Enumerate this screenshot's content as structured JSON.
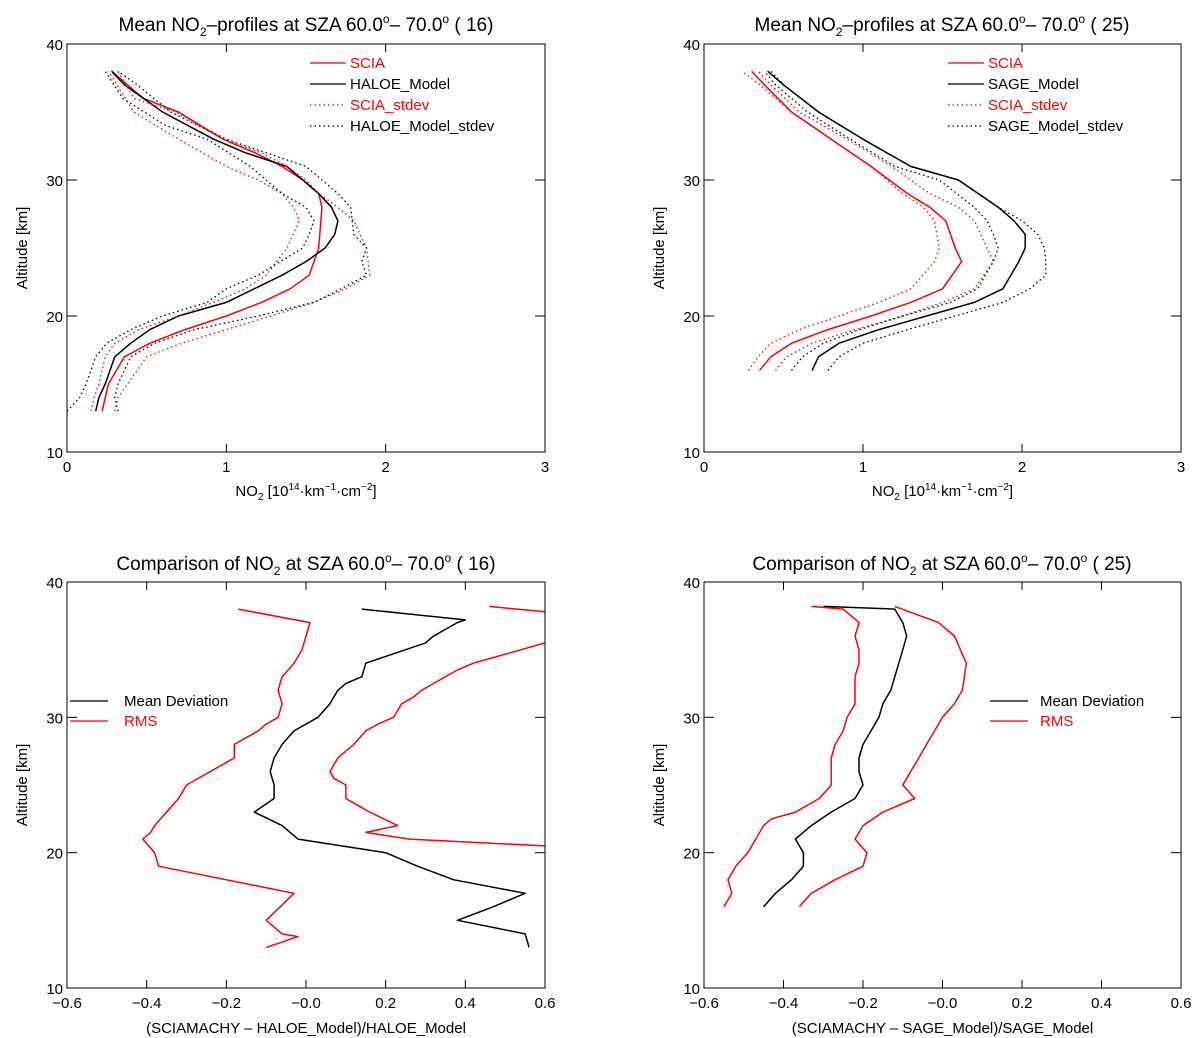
{
  "chart_data": [
    {
      "type": "line",
      "title": {
        "pre": "Mean NO",
        "sub": "2",
        "mid": "–profiles at SZA  60.0",
        "deg1": "o",
        "dash": "– 70.0",
        "deg2": "o",
        "post": " (  16)"
      },
      "xlabel": {
        "pre": "NO",
        "sub": "2",
        "mid": " [10",
        "sup1": "14",
        "mid2": "·km",
        "sup2": "−1",
        "mid3": "·cm",
        "sup3": "−2",
        "post": "]"
      },
      "ylabel": "Altitude [km]",
      "xlim": [
        0,
        3
      ],
      "ylim": [
        10,
        40
      ],
      "xticks": [
        "0",
        "1",
        "2",
        "3"
      ],
      "yticks": [
        "10",
        "20",
        "30",
        "40"
      ],
      "grid": false,
      "legend": "top-right",
      "series": [
        {
          "name": "SCIA",
          "color": "#ff0000",
          "dash": "solid",
          "x": [
            0.22,
            0.24,
            0.26,
            0.36,
            0.52,
            0.74,
            1.0,
            1.22,
            1.4,
            1.52,
            1.58,
            1.6,
            1.58,
            1.48,
            1.35,
            1.18,
            0.98,
            0.7,
            0.48,
            0.28
          ],
          "y": [
            13,
            14,
            15,
            17,
            18,
            19,
            20,
            21,
            22,
            23,
            25,
            28,
            29,
            30,
            31,
            32,
            33,
            35,
            36,
            38
          ]
        },
        {
          "name": "HALOE_Model",
          "color": "#000000",
          "dash": "solid",
          "x": [
            0.18,
            0.2,
            0.24,
            0.3,
            0.4,
            0.52,
            0.7,
            1.0,
            1.35,
            1.5,
            1.62,
            1.68,
            1.7,
            1.66,
            1.58,
            1.38,
            1.12,
            0.92,
            0.6,
            0.36,
            0.28
          ],
          "y": [
            13,
            14,
            15,
            17,
            18,
            19,
            20,
            21,
            23,
            24,
            25,
            26,
            27,
            28,
            29,
            31,
            32,
            33,
            35,
            37,
            38
          ]
        },
        {
          "name": "SCIA_stdev",
          "color": "#ff0000",
          "dash": "dotted",
          "x": [
            0.3,
            0.32,
            0.38,
            0.5,
            0.72,
            1.0,
            1.28,
            1.55,
            1.75,
            1.9,
            1.88,
            1.8,
            1.7,
            1.58,
            1.5,
            1.38,
            1.22,
            0.98,
            0.68,
            0.42,
            0.32
          ],
          "y": [
            13,
            14,
            15,
            17,
            18,
            19,
            20,
            21,
            22,
            23,
            25,
            27,
            28,
            29,
            30,
            31,
            32,
            33,
            35,
            36,
            38
          ]
        },
        {
          "name": "SCIA_stdev",
          "color": "#ff0000",
          "dash": "dotted",
          "x": [
            0.15,
            0.17,
            0.2,
            0.24,
            0.3,
            0.45,
            0.7,
            0.92,
            1.12,
            1.25,
            1.38,
            1.46,
            1.42,
            1.35,
            1.2,
            1.0,
            0.7,
            0.42,
            0.26
          ],
          "y": [
            13,
            14,
            15,
            17,
            18,
            19,
            20,
            21,
            22,
            23,
            25,
            27,
            28,
            29,
            30,
            31,
            33,
            35,
            38
          ]
        },
        {
          "name": "HALOE_Model_stdev",
          "color": "#000000",
          "dash": "dotted",
          "x": [
            0.32,
            0.3,
            0.32,
            0.4,
            0.55,
            0.8,
            1.2,
            1.55,
            1.72,
            1.88,
            1.85,
            1.88,
            1.8,
            1.78,
            1.7,
            1.5,
            1.25,
            1.0,
            0.65,
            0.44,
            0.32
          ],
          "y": [
            13,
            14,
            15,
            17,
            18,
            19,
            20,
            21,
            22,
            23,
            24,
            25,
            26,
            28,
            29,
            31,
            32,
            33,
            35,
            37,
            38
          ]
        },
        {
          "name": "HALOE_Model_stdev",
          "color": "#000000",
          "dash": "dotted",
          "x": [
            0.0,
            0.08,
            0.12,
            0.18,
            0.25,
            0.4,
            0.6,
            0.88,
            1.0,
            1.2,
            1.48,
            1.52,
            1.55,
            1.5,
            1.35,
            1.15,
            0.88,
            0.62,
            0.35,
            0.24
          ],
          "y": [
            13,
            14,
            15,
            17,
            18,
            19,
            20,
            21,
            22,
            23,
            25,
            26,
            27,
            28,
            29,
            31,
            33,
            34,
            36,
            38
          ]
        }
      ]
    },
    {
      "type": "line",
      "title": {
        "pre": "Mean NO",
        "sub": "2",
        "mid": "–profiles at SZA  60.0",
        "deg1": "o",
        "dash": "– 70.0",
        "deg2": "o",
        "post": " (  25)"
      },
      "xlabel": {
        "pre": "NO",
        "sub": "2",
        "mid": " [10",
        "sup1": "14",
        "mid2": "·km",
        "sup2": "−1",
        "mid3": "·cm",
        "sup3": "−2",
        "post": "]"
      },
      "ylabel": "Altitude [km]",
      "xlim": [
        0,
        3
      ],
      "ylim": [
        10,
        40
      ],
      "xticks": [
        "0",
        "1",
        "2",
        "3"
      ],
      "yticks": [
        "10",
        "20",
        "30",
        "40"
      ],
      "grid": false,
      "legend": "top-right",
      "series": [
        {
          "name": "SCIA",
          "color": "#ff0000",
          "dash": "solid",
          "x": [
            0.35,
            0.42,
            0.55,
            0.78,
            1.05,
            1.3,
            1.5,
            1.62,
            1.58,
            1.52,
            1.42,
            1.28,
            1.05,
            0.8,
            0.55,
            0.38,
            0.3
          ],
          "y": [
            16,
            17,
            18,
            19,
            20,
            21,
            22,
            24,
            25,
            27,
            28,
            29,
            31,
            33,
            35,
            37,
            38
          ]
        },
        {
          "name": "SAGE_Model",
          "color": "#000000",
          "dash": "solid",
          "x": [
            0.68,
            0.72,
            0.85,
            1.1,
            1.4,
            1.7,
            1.88,
            1.98,
            2.02,
            2.02,
            1.95,
            1.85,
            1.6,
            1.3,
            1.0,
            0.72,
            0.5,
            0.4
          ],
          "y": [
            16,
            17,
            18,
            19,
            20,
            21,
            22,
            24,
            25,
            26,
            27,
            28,
            30,
            31,
            33,
            35,
            37,
            38
          ]
        },
        {
          "name": "SCIA_stdev",
          "color": "#ff0000",
          "dash": "dotted",
          "x": [
            0.45,
            0.52,
            0.68,
            0.95,
            1.25,
            1.5,
            1.7,
            1.82,
            1.78,
            1.7,
            1.6,
            1.42,
            1.18,
            0.9,
            0.6,
            0.42,
            0.34
          ],
          "y": [
            16,
            17,
            18,
            19,
            20,
            21,
            22,
            24,
            25,
            27,
            28,
            29,
            31,
            33,
            35,
            37,
            38
          ]
        },
        {
          "name": "SCIA_stdev",
          "color": "#ff0000",
          "dash": "dotted",
          "x": [
            0.28,
            0.34,
            0.42,
            0.6,
            0.85,
            1.1,
            1.3,
            1.45,
            1.48,
            1.45,
            1.38,
            1.25,
            1.05,
            0.8,
            0.55,
            0.35,
            0.24
          ],
          "y": [
            16,
            17,
            18,
            19,
            20,
            21,
            22,
            24,
            25,
            27,
            28,
            29,
            31,
            33,
            35,
            37,
            38
          ]
        },
        {
          "name": "SAGE_Model_stdev",
          "color": "#000000",
          "dash": "dotted",
          "x": [
            0.78,
            0.85,
            1.0,
            1.28,
            1.58,
            1.88,
            2.05,
            2.15,
            2.15,
            2.14,
            2.1,
            2.0,
            1.85,
            1.6,
            1.3,
            1.0,
            0.72,
            0.5,
            0.42
          ],
          "y": [
            16,
            17,
            18,
            19,
            20,
            21,
            22,
            23,
            24,
            25,
            26,
            27,
            28,
            30,
            31,
            33,
            35,
            37,
            38
          ]
        },
        {
          "name": "SAGE_Model_stdev",
          "color": "#000000",
          "dash": "dotted",
          "x": [
            0.55,
            0.62,
            0.75,
            0.98,
            1.25,
            1.55,
            1.72,
            1.82,
            1.85,
            1.82,
            1.78,
            1.7,
            1.48,
            1.2,
            0.92,
            0.65,
            0.45,
            0.38
          ],
          "y": [
            16,
            17,
            18,
            19,
            20,
            21,
            22,
            24,
            25,
            26,
            27,
            28,
            30,
            31,
            33,
            35,
            37,
            38
          ]
        }
      ]
    },
    {
      "type": "line",
      "title": {
        "pre": "Comparison of NO",
        "sub": "2",
        "mid": " at SZA  60.0",
        "deg1": "o",
        "dash": "– 70.0",
        "deg2": "o",
        "post": " ( 16)"
      },
      "xlabel": {
        "pre": "(SCIAMACHY – HALOE_Model)/HALOE_Model"
      },
      "ylabel": "Altitude [km]",
      "xlim": [
        -0.6,
        0.6
      ],
      "ylim": [
        10,
        40
      ],
      "xticks": [
        "−0.6",
        "−0.4",
        "−0.2",
        "−0.0",
        "0.2",
        "0.4",
        "0.6"
      ],
      "yticks": [
        "10",
        "20",
        "30",
        "40"
      ],
      "grid": false,
      "legend": "middle-left",
      "series": [
        {
          "name": "Mean Deviation",
          "color": "#000000",
          "dash": "solid",
          "x": [
            0.56,
            0.55,
            0.38,
            0.47,
            0.55,
            0.37,
            0.28,
            0.2,
            -0.02,
            -0.06,
            -0.13,
            -0.08,
            -0.08,
            -0.09,
            -0.08,
            -0.06,
            -0.03,
            0.0,
            0.03,
            0.06,
            0.08,
            0.1,
            0.14,
            0.15,
            0.2,
            0.25,
            0.3,
            0.32,
            0.35,
            0.38,
            0.4,
            0.14
          ],
          "y": [
            13,
            14,
            15,
            16,
            17,
            18,
            19,
            20,
            21,
            22,
            23,
            24,
            25,
            26,
            27,
            28,
            29,
            29.5,
            30,
            31,
            32,
            32.5,
            33,
            34,
            34.5,
            35,
            35.5,
            36,
            36.5,
            37,
            37.2,
            38
          ]
        },
        {
          "name": "RMS",
          "color": "#ff0000",
          "dash": "solid",
          "x": [
            -0.1,
            -0.02,
            -0.06,
            -0.1,
            -0.03,
            -0.37,
            -0.38,
            -0.41,
            -0.39,
            -0.38,
            -0.32,
            -0.3,
            -0.24,
            -0.21,
            -0.18,
            -0.18,
            -0.12,
            -0.1,
            -0.07,
            -0.06,
            -0.07,
            -0.06,
            -0.03,
            -0.01,
            0.0,
            0.01,
            -0.17
          ],
          "y": [
            13,
            13.8,
            14,
            15,
            17,
            19,
            20,
            21,
            21.5,
            22,
            24,
            25,
            26,
            26.5,
            27,
            28,
            29,
            29.5,
            30,
            31,
            32,
            33,
            34,
            35,
            36,
            37,
            38
          ]
        },
        {
          "name": "RMS",
          "color": "#ff0000",
          "dash": "solid",
          "x": [
            0.6,
            0.26,
            0.15,
            0.23,
            0.16,
            0.13,
            0.1,
            0.1,
            0.07,
            0.06,
            0.08,
            0.1,
            0.12,
            0.15,
            0.18,
            0.22,
            0.24,
            0.27,
            0.29,
            0.32,
            0.35,
            0.38,
            0.42,
            0.48,
            0.54,
            0.6
          ],
          "y": [
            20.5,
            21,
            21.5,
            22,
            23,
            23.5,
            24,
            25,
            25.5,
            26,
            27,
            27.5,
            28,
            29,
            29.5,
            30,
            31,
            31.5,
            32,
            32.5,
            33,
            33.5,
            34,
            34.5,
            35,
            35.5
          ]
        },
        {
          "name": "RMS",
          "color": "#ff0000",
          "dash": "solid",
          "x": [
            0.46,
            0.6
          ],
          "y": [
            38.2,
            37.8
          ]
        }
      ]
    },
    {
      "type": "line",
      "title": {
        "pre": "Comparison of NO",
        "sub": "2",
        "mid": " at SZA  60.0",
        "deg1": "o",
        "dash": "– 70.0",
        "deg2": "o",
        "post": " ( 25)"
      },
      "xlabel": {
        "pre": "(SCIAMACHY – SAGE_Model)/SAGE_Model"
      },
      "ylabel": "Altitude [km]",
      "xlim": [
        -0.6,
        0.6
      ],
      "ylim": [
        10,
        40
      ],
      "xticks": [
        "−0.6",
        "−0.4",
        "−0.2",
        "−0.0",
        "0.2",
        "0.4",
        "0.6"
      ],
      "yticks": [
        "10",
        "20",
        "30",
        "40"
      ],
      "grid": false,
      "legend": "middle-right",
      "series": [
        {
          "name": "Mean Deviation",
          "color": "#000000",
          "dash": "solid",
          "x": [
            -0.45,
            -0.42,
            -0.38,
            -0.35,
            -0.35,
            -0.37,
            -0.33,
            -0.28,
            -0.22,
            -0.2,
            -0.21,
            -0.21,
            -0.2,
            -0.18,
            -0.16,
            -0.15,
            -0.13,
            -0.12,
            -0.11,
            -0.1,
            -0.09,
            -0.1,
            -0.12,
            -0.3
          ],
          "y": [
            16,
            17,
            18,
            19,
            20,
            21,
            22,
            23,
            24,
            25,
            26,
            27,
            28,
            29,
            30,
            31,
            32,
            33,
            34,
            35,
            36,
            37,
            38,
            38.2
          ]
        },
        {
          "name": "RMS",
          "color": "#ff0000",
          "dash": "solid",
          "x": [
            -0.55,
            -0.53,
            -0.54,
            -0.52,
            -0.49,
            -0.47,
            -0.45,
            -0.43,
            -0.37,
            -0.31,
            -0.28,
            -0.28,
            -0.28,
            -0.27,
            -0.25,
            -0.24,
            -0.22,
            -0.22,
            -0.22,
            -0.21,
            -0.21,
            -0.22,
            -0.21,
            -0.25,
            -0.33
          ],
          "y": [
            16,
            17,
            18,
            19,
            20,
            21,
            22,
            22.5,
            23,
            24,
            25,
            26,
            27,
            28,
            29,
            30,
            31,
            32,
            33,
            34,
            35,
            36,
            37,
            38,
            38.2
          ]
        },
        {
          "name": "RMS",
          "color": "#ff0000",
          "dash": "solid",
          "x": [
            -0.36,
            -0.33,
            -0.27,
            -0.2,
            -0.19,
            -0.22,
            -0.2,
            -0.15,
            -0.07,
            -0.1,
            -0.08,
            -0.06,
            -0.04,
            -0.02,
            0.0,
            0.03,
            0.05,
            0.06,
            0.03,
            -0.01,
            -0.12
          ],
          "y": [
            16,
            17,
            18,
            19,
            20,
            21,
            22,
            23,
            24,
            25,
            26,
            27,
            28,
            29,
            30,
            31,
            32,
            34,
            36,
            37,
            38.2
          ]
        }
      ]
    }
  ]
}
